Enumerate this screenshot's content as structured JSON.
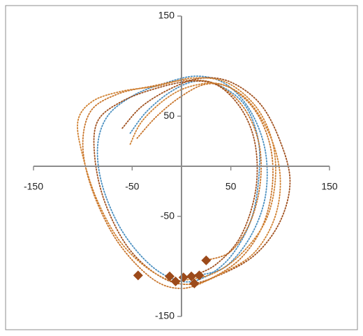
{
  "chart_data": {
    "type": "scatter",
    "xlim": [
      -150,
      150
    ],
    "ylim": [
      -150,
      150
    ],
    "xticks": [
      -150,
      -50,
      50,
      150
    ],
    "yticks": [
      -150,
      -50,
      50,
      150
    ],
    "grid": false,
    "series": [
      {
        "color": "#4a8fc0",
        "line_style": "dotted",
        "marker": "none",
        "x": [
          -52,
          -35,
          -10,
          15,
          40,
          65,
          78,
          78,
          70,
          50,
          25,
          0,
          -30,
          -60,
          -80,
          -85,
          -75,
          -50,
          -20,
          15,
          45,
          70,
          85,
          85,
          70,
          45,
          18
        ],
        "values": [
          33,
          55,
          75,
          85,
          80,
          60,
          25,
          -15,
          -55,
          -90,
          -110,
          -115,
          -100,
          -65,
          -20,
          20,
          50,
          70,
          82,
          90,
          82,
          55,
          15,
          -30,
          -70,
          -100,
          -109
        ]
      },
      {
        "color": "#c8742a",
        "line_style": "dotted",
        "marker": "none",
        "x": [
          -45,
          -25,
          0,
          25,
          50,
          75,
          90,
          92,
          82,
          60,
          30,
          0,
          -30,
          -65,
          -90,
          -100,
          -92,
          -65,
          -30,
          5,
          35,
          62,
          78,
          80,
          70,
          50,
          25
        ],
        "values": [
          28,
          50,
          70,
          82,
          78,
          55,
          20,
          -20,
          -60,
          -92,
          -112,
          -122,
          -112,
          -75,
          -25,
          20,
          55,
          72,
          80,
          86,
          82,
          60,
          25,
          -15,
          -55,
          -85,
          -94
        ]
      },
      {
        "color": "#a0501e",
        "line_style": "dotted",
        "marker": "none",
        "x": [
          -60,
          -40,
          -10,
          20,
          50,
          80,
          100,
          110,
          100,
          75,
          40,
          5,
          -25,
          -55,
          -78,
          -88,
          -85,
          -60,
          -25,
          10,
          38,
          62,
          75,
          75,
          60,
          35,
          10
        ],
        "values": [
          38,
          60,
          78,
          88,
          84,
          62,
          25,
          -15,
          -55,
          -88,
          -108,
          -118,
          -108,
          -80,
          -35,
          10,
          45,
          65,
          78,
          85,
          80,
          55,
          20,
          -25,
          -70,
          -98,
          -110
        ]
      },
      {
        "color": "#d08030",
        "line_style": "dotted",
        "marker": "none",
        "x": [
          -52,
          -40,
          -15,
          10,
          40,
          68,
          90,
          100,
          95,
          75,
          45,
          10,
          -25,
          -60,
          -85,
          -100,
          -105,
          -90,
          -60,
          -25,
          10,
          45,
          75,
          92,
          95,
          85,
          60,
          30,
          -6
        ],
        "values": [
          22,
          45,
          68,
          80,
          82,
          65,
          30,
          -10,
          -50,
          -85,
          -105,
          -118,
          -108,
          -78,
          -35,
          10,
          45,
          65,
          75,
          80,
          88,
          84,
          60,
          25,
          -15,
          -55,
          -88,
          -108,
          -115
        ]
      },
      {
        "color": "#9c4a1a",
        "line_style": "none",
        "marker": "diamond",
        "x": [
          -44,
          -12,
          -6,
          2,
          10,
          13,
          18,
          25
        ],
        "values": [
          -109,
          -110,
          -115,
          -111,
          -110,
          -117,
          -109,
          -94
        ]
      }
    ]
  }
}
